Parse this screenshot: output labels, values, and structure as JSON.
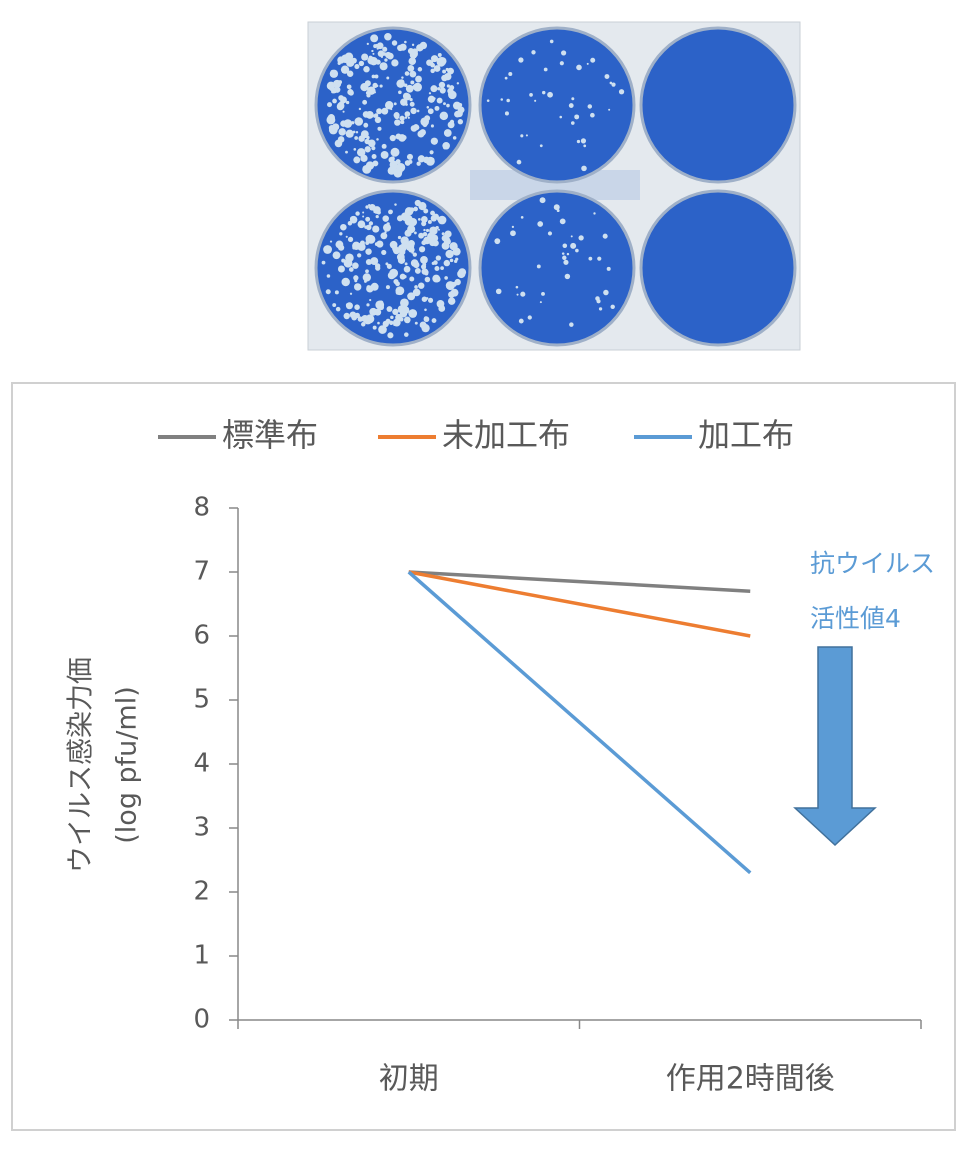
{
  "chart_data": {
    "type": "line",
    "categories": [
      "初期",
      "作用2時間後"
    ],
    "series": [
      {
        "name": "標準布",
        "color": "#808080",
        "values": [
          7,
          6.7
        ]
      },
      {
        "name": "未加工布",
        "color": "#ed7d31",
        "values": [
          7,
          6.0
        ]
      },
      {
        "name": "加工布",
        "color": "#5b9bd5",
        "values": [
          7,
          2.3
        ]
      }
    ],
    "y_label": [
      "ウイルス感染力価",
      "(log pfu/ml)"
    ],
    "annotation": [
      "抗ウイルス",
      "活性値4"
    ],
    "annotation_color": "#5b9bd5",
    "ylim": [
      0,
      8
    ],
    "yticks": [
      0,
      1,
      2,
      3,
      4,
      5,
      6,
      7,
      8
    ],
    "legend": "top",
    "grid": false
  }
}
